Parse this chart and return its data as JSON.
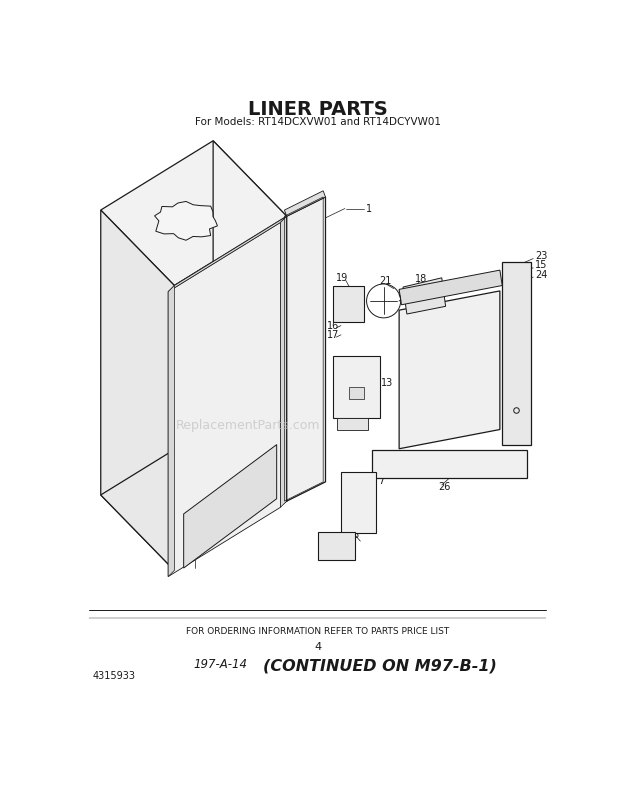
{
  "title": "LINER PARTS",
  "subtitle": "For Models: RT14DCXVW01 and RT14DCYVW01",
  "bottom_note": "FOR ORDERING INFORMATION REFER TO PARTS PRICE LIST",
  "page_number": "4",
  "page_ref": "197-A-14",
  "continued": "(CONTINUED ON M97-B-1)",
  "part_number": "4315933",
  "background_color": "#ffffff",
  "line_color": "#1a1a1a",
  "gray_fill": "#e8e8e8",
  "light_fill": "#f2f2f2",
  "mid_fill": "#d8d8d8",
  "title_fontsize": 14,
  "subtitle_fontsize": 7.5,
  "label_fontsize": 7
}
